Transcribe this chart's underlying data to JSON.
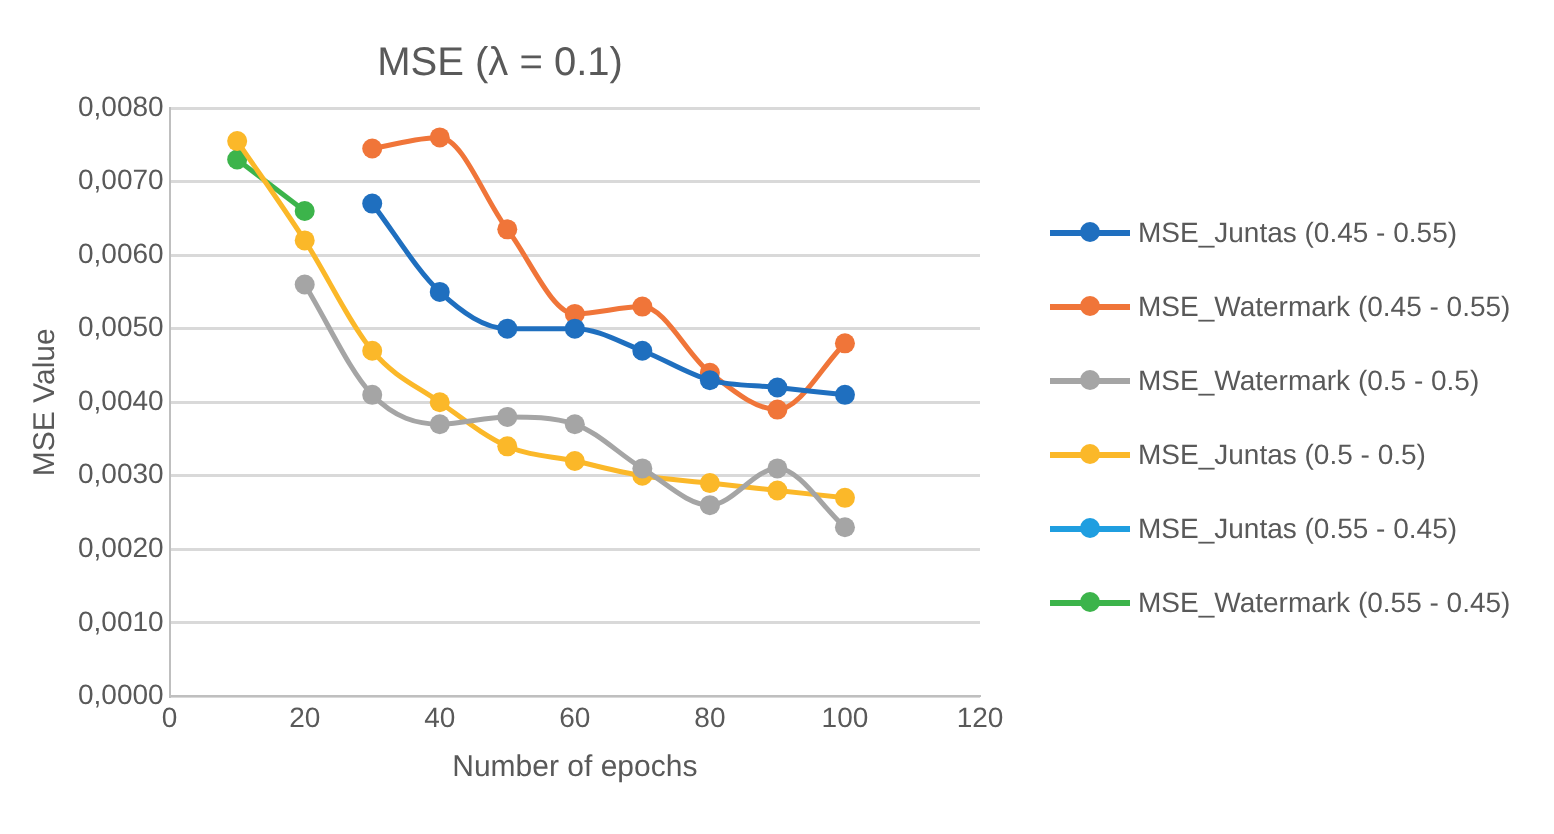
{
  "chart_data": {
    "type": "line",
    "title": "MSE (λ = 0.1)",
    "xlabel": "Number of epochs",
    "ylabel": "MSE Value",
    "x": [
      10,
      20,
      30,
      40,
      50,
      60,
      70,
      80,
      90,
      100
    ],
    "xlim": [
      0,
      120
    ],
    "xticks": [
      0,
      20,
      40,
      60,
      80,
      100,
      120
    ],
    "ylim": [
      0,
      0.008
    ],
    "yticks": [
      {
        "value": 0,
        "label": "0,0000"
      },
      {
        "value": 0.001,
        "label": "0,0010"
      },
      {
        "value": 0.002,
        "label": "0,0020"
      },
      {
        "value": 0.003,
        "label": "0,0030"
      },
      {
        "value": 0.004,
        "label": "0,0040"
      },
      {
        "value": 0.005,
        "label": "0,0050"
      },
      {
        "value": 0.006,
        "label": "0,0060"
      },
      {
        "value": 0.007,
        "label": "0,0070"
      },
      {
        "value": 0.008,
        "label": "0,0080"
      }
    ],
    "grid": "y",
    "legend": "right",
    "marker": "circle",
    "series": [
      {
        "name": "MSE_Juntas (0.45 - 0.55)",
        "color": "#1f6fbf",
        "values": [
          null,
          null,
          0.0067,
          0.0055,
          0.005,
          0.005,
          0.0047,
          0.0043,
          0.0042,
          0.0041
        ]
      },
      {
        "name": "MSE_Watermark (0.45 - 0.55)",
        "color": "#f07539",
        "values": [
          null,
          null,
          0.00745,
          0.0076,
          0.00635,
          0.0052,
          0.0053,
          0.0044,
          0.0039,
          0.0048
        ]
      },
      {
        "name": "MSE_Watermark (0.5 - 0.5)",
        "color": "#a5a5a5",
        "values": [
          null,
          0.0056,
          0.0041,
          0.0037,
          0.0038,
          0.0037,
          0.0031,
          0.0026,
          0.0031,
          0.0023
        ]
      },
      {
        "name": "MSE_Juntas (0.5 - 0.5)",
        "color": "#fbb829",
        "values": [
          0.00755,
          0.0062,
          0.0047,
          0.004,
          0.0034,
          0.0032,
          0.003,
          0.0029,
          0.0028,
          0.0027
        ]
      },
      {
        "name": "MSE_Juntas (0.55 - 0.45)",
        "color": "#1f9ee0",
        "values": [
          null,
          null,
          null,
          null,
          null,
          null,
          null,
          null,
          null,
          null
        ]
      },
      {
        "name": "MSE_Watermark (0.55 - 0.45)",
        "color": "#3cb44b",
        "values": [
          0.0073,
          0.0066,
          null,
          null,
          null,
          null,
          null,
          null,
          null,
          null
        ]
      }
    ]
  }
}
